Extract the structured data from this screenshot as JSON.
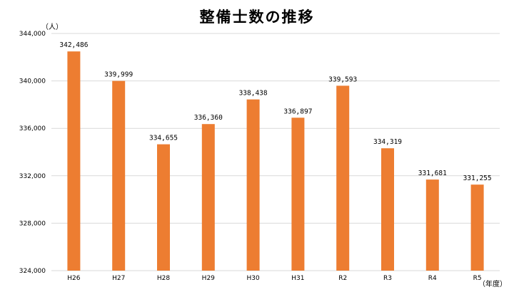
{
  "chart_data": {
    "type": "bar",
    "title": "整備士数の推移",
    "ylabel": "（人）",
    "xlabel": "（年度）",
    "categories": [
      "H26",
      "H27",
      "H28",
      "H29",
      "H30",
      "H31",
      "R2",
      "R3",
      "R4",
      "R5"
    ],
    "values": [
      342486,
      339999,
      334655,
      336360,
      338438,
      336897,
      339593,
      334319,
      331681,
      331255
    ],
    "data_labels": [
      "342,486",
      "339,999",
      "334,655",
      "336,360",
      "338,438",
      "336,897",
      "339,593",
      "334,319",
      "331,681",
      "331,255"
    ],
    "ylim": [
      324000,
      344000
    ],
    "yticks": [
      324000,
      328000,
      332000,
      336000,
      340000,
      344000
    ],
    "ytick_labels": [
      "324,000",
      "328,000",
      "332,000",
      "336,000",
      "340,000",
      "344,000"
    ],
    "grid": true,
    "legend": "none",
    "bar_color": "#ED7D31",
    "grid_color": "#D9D9D9"
  }
}
